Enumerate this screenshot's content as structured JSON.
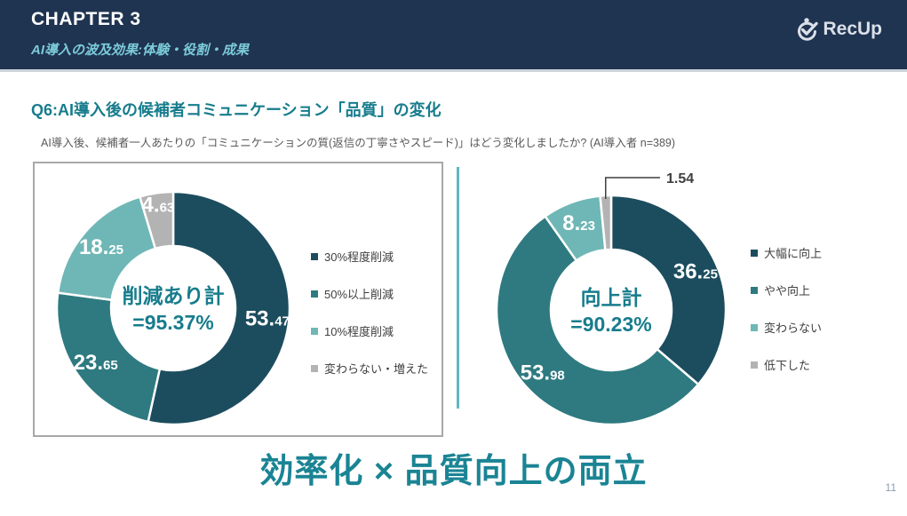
{
  "header": {
    "chapter": "CHAPTER 3",
    "subtitle": "AI導入の波及効果:体験・役割・成果",
    "logo_text": "RecUp"
  },
  "question": {
    "title": "Q6:AI導入後の候補者コミュニケーション「品質」の変化",
    "description": "AI導入後、候補者一人あたりの「コミュニケーションの質(返信の丁寧さやスピード)」はどう変化しましたか? (AI導入者 n=389)"
  },
  "chart_data": [
    {
      "type": "pie",
      "donut": true,
      "categories": [
        "30%程度削減",
        "50%以上削減",
        "10%程度削減",
        "変わらない・増えた"
      ],
      "values": [
        53.47,
        23.65,
        18.25,
        4.63
      ],
      "colors": [
        "#1C4D5E",
        "#2E7A80",
        "#6FB7B6",
        "#B3B3B3"
      ],
      "center_label": [
        "削減あり計",
        "=95.37%"
      ],
      "legend_position": "right",
      "callout_index": null
    },
    {
      "type": "pie",
      "donut": true,
      "categories": [
        "大幅に向上",
        "やや向上",
        "変わらない",
        "低下した"
      ],
      "values": [
        36.25,
        53.98,
        8.23,
        1.54
      ],
      "colors": [
        "#1C4D5E",
        "#2E7A80",
        "#6FB7B6",
        "#B3B3B3"
      ],
      "center_label": [
        "向上計",
        "=90.23%"
      ],
      "legend_position": "right",
      "callout_index": 3
    }
  ],
  "headline": "効率化 × 品質向上の両立",
  "page_number": "11",
  "colors": {
    "header_bg": "#1F3451",
    "header_subtitle": "#7CCBD9",
    "accent_teal": "#177C8C",
    "headline_teal": "#1A8494",
    "divider_teal": "#5FB7C1",
    "text_gray": "#595959",
    "legend_text": "#3F3F3F",
    "page_number": "#8B9CB3",
    "box_border": "#A8A8A8"
  }
}
